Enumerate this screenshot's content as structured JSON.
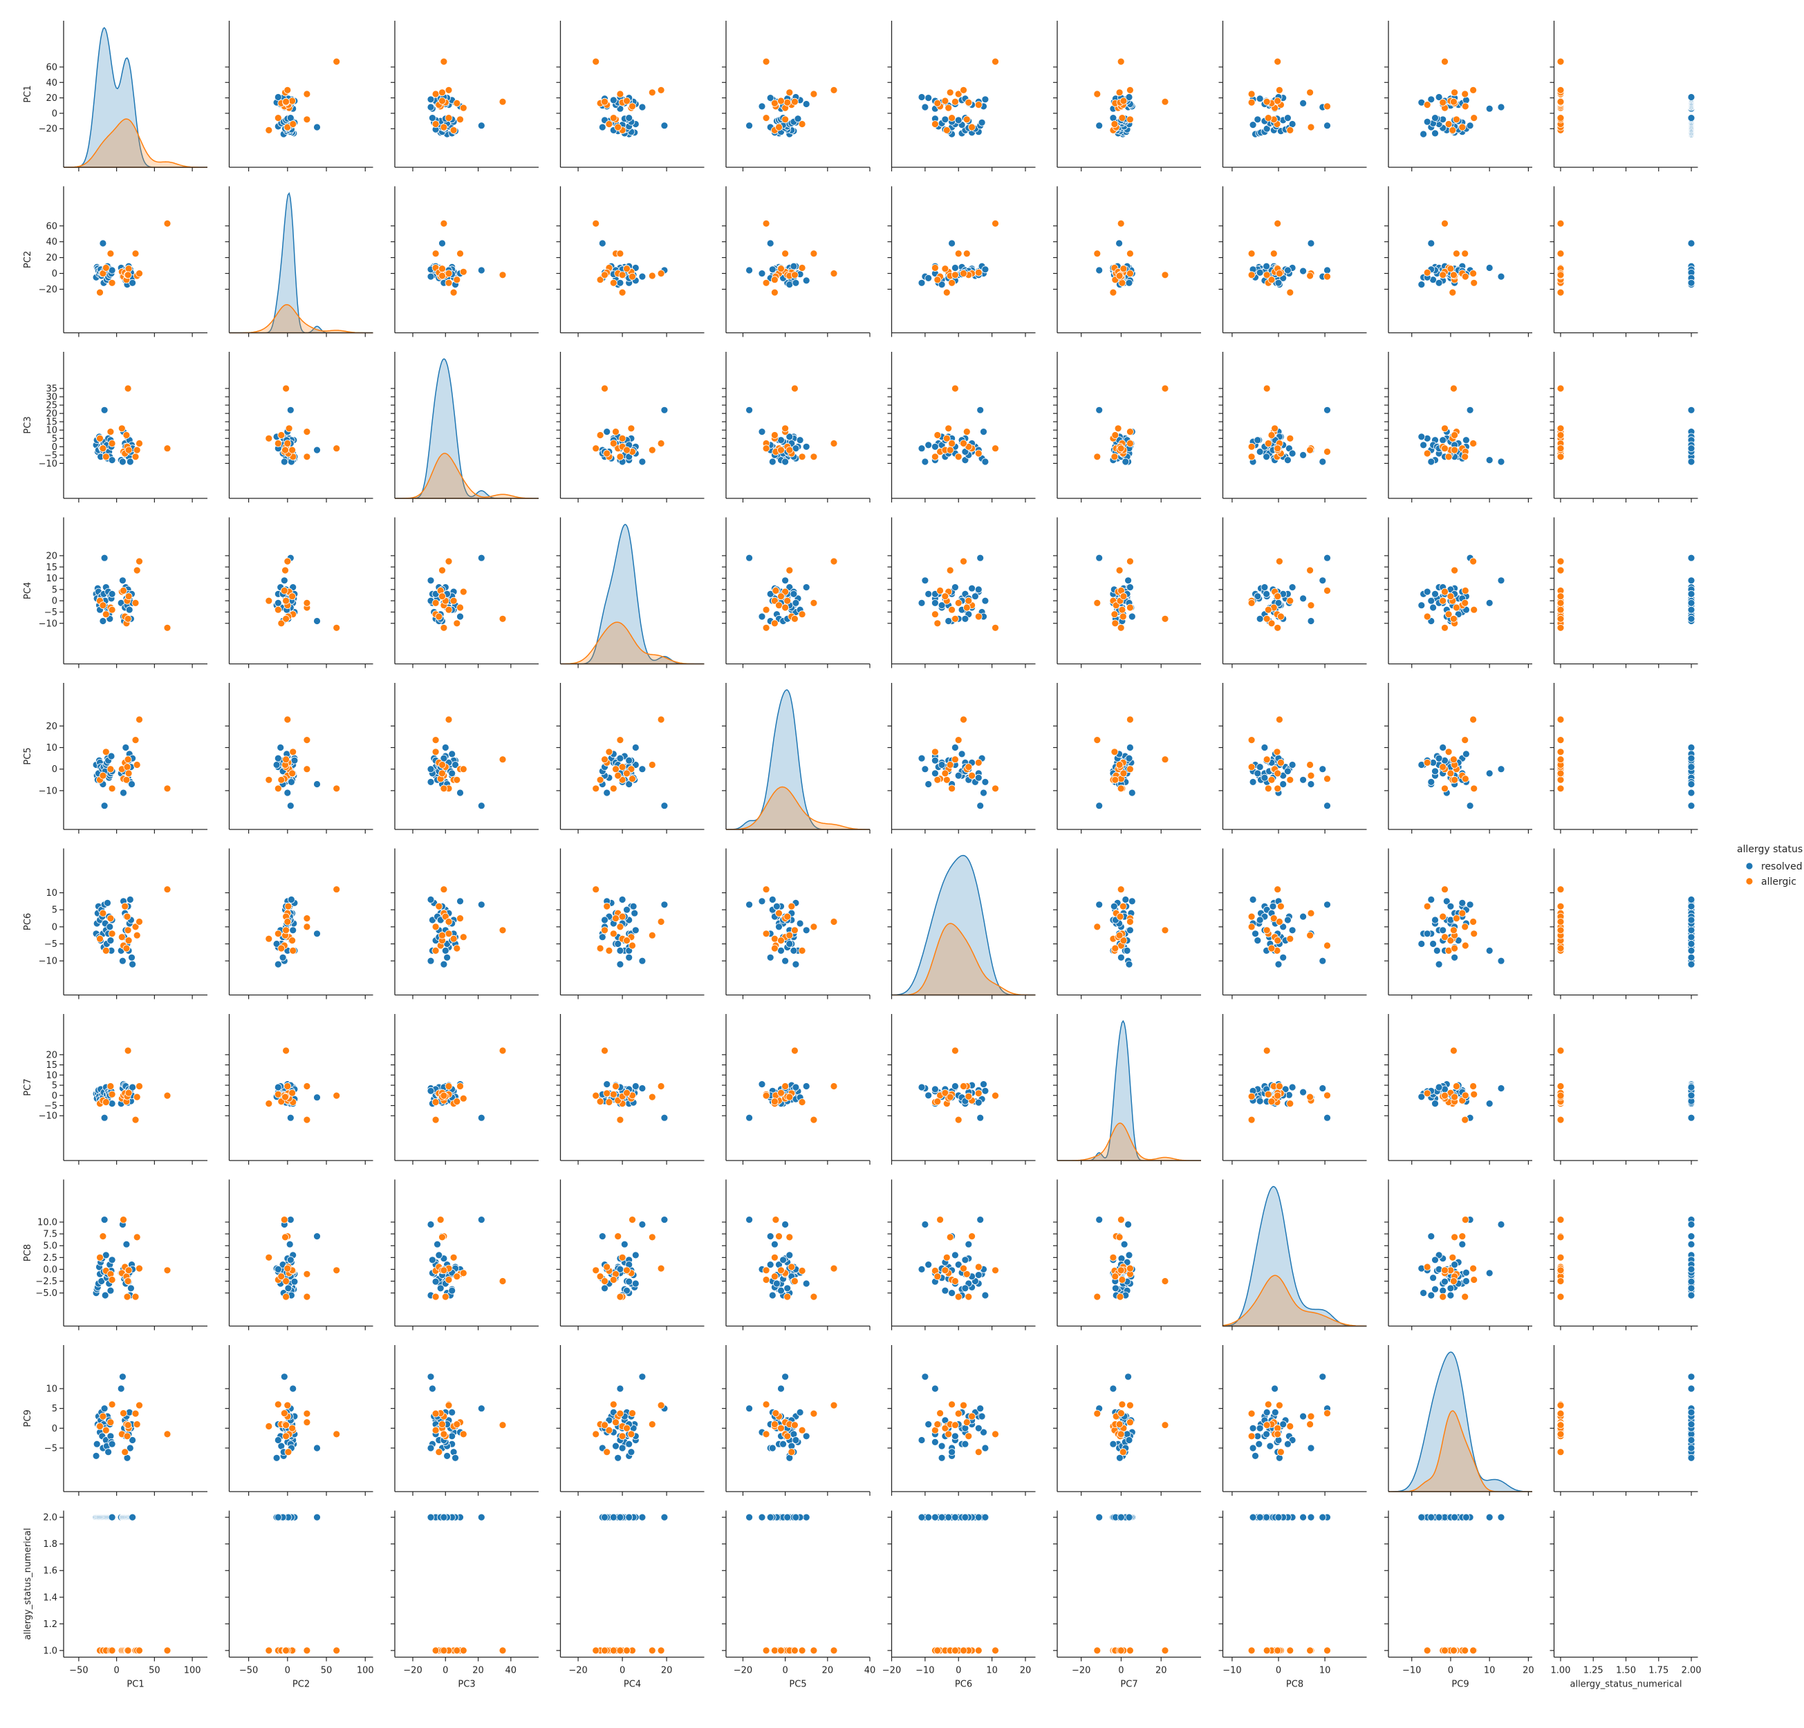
{
  "chart_data": {
    "type": "scatter",
    "title": "",
    "variables": [
      "PC1",
      "PC2",
      "PC3",
      "PC4",
      "PC5",
      "PC6",
      "PC7",
      "PC8",
      "PC9",
      "allergy_status_numerical"
    ],
    "axes": [
      {
        "name": "PC1",
        "range": [
          -30,
          72
        ],
        "display_range": [
          -70,
          120
        ],
        "ticks": [
          -50,
          0,
          50,
          100
        ],
        "yticks": [
          -20,
          0,
          20,
          40,
          60
        ],
        "tick_labels": [
          "−50",
          "0",
          "50",
          "100"
        ],
        "ytick_labels": [
          "−20",
          "0",
          "20",
          "40",
          "60"
        ]
      },
      {
        "name": "PC2",
        "range": [
          -25,
          63
        ],
        "display_range": [
          -75,
          110
        ],
        "ticks": [
          -50,
          0,
          50,
          100
        ],
        "yticks": [
          -20,
          0,
          20,
          40,
          60
        ],
        "tick_labels": [
          "−50",
          "0",
          "50",
          "100"
        ],
        "ytick_labels": [
          "−20",
          "0",
          "20",
          "40",
          "60"
        ]
      },
      {
        "name": "PC3",
        "range": [
          -10,
          35
        ],
        "display_range": [
          -31,
          57
        ],
        "ticks": [
          -20,
          0,
          20,
          40
        ],
        "yticks": [
          -10,
          -5,
          0,
          5,
          10,
          15,
          20,
          25,
          30,
          35
        ],
        "tick_labels": [
          "−20",
          "0",
          "20",
          "40"
        ],
        "ytick_labels": [
          "−10",
          "−5",
          "0",
          "5",
          "10",
          "15",
          "20",
          "25",
          "30",
          "35"
        ]
      },
      {
        "name": "PC4",
        "range": [
          -12,
          20
        ],
        "display_range": [
          -28,
          37
        ],
        "ticks": [
          -20,
          0,
          20
        ],
        "yticks": [
          -10,
          -5,
          0,
          5,
          10,
          15,
          20
        ],
        "tick_labels": [
          "−20",
          "0",
          "20"
        ],
        "ytick_labels": [
          "−10",
          "−5",
          "0",
          "5",
          "10",
          "15",
          "20"
        ]
      },
      {
        "name": "PC5",
        "range": [
          -17,
          23
        ],
        "display_range": [
          -28,
          40
        ],
        "ticks": [
          -20,
          0,
          20,
          40
        ],
        "yticks": [
          -10,
          0,
          10,
          20
        ],
        "tick_labels": [
          "−20",
          "0",
          "20",
          "40"
        ],
        "ytick_labels": [
          "−10",
          "0",
          "10",
          "20"
        ]
      },
      {
        "name": "PC6",
        "range": [
          -11,
          11
        ],
        "display_range": [
          -20,
          23
        ],
        "ticks": [
          -20,
          -10,
          0,
          10,
          20
        ],
        "yticks": [
          -10,
          -5,
          0,
          5,
          10
        ],
        "tick_labels": [
          "−20",
          "−10",
          "0",
          "10",
          "20"
        ],
        "ytick_labels": [
          "−10",
          "−5",
          "0",
          "5",
          "10"
        ]
      },
      {
        "name": "PC7",
        "range": [
          -12,
          22
        ],
        "display_range": [
          -32,
          40
        ],
        "ticks": [
          -20,
          0,
          20
        ],
        "yticks": [
          -10,
          -5,
          0,
          5,
          10,
          15,
          20
        ],
        "tick_labels": [
          "−20",
          "0",
          "20"
        ],
        "ytick_labels": [
          "−10",
          "−5",
          "0",
          "5",
          "10",
          "15",
          "20"
        ]
      },
      {
        "name": "PC8",
        "range": [
          -6,
          10.5
        ],
        "display_range": [
          -12,
          19
        ],
        "ticks": [
          -10,
          0,
          10
        ],
        "yticks": [
          -5,
          -2.5,
          0,
          2.5,
          5,
          7.5,
          10
        ],
        "tick_labels": [
          "−10",
          "0",
          "10"
        ],
        "ytick_labels": [
          "−5.0",
          "−2.5",
          "0.0",
          "2.5",
          "5.0",
          "7.5",
          "10.0"
        ]
      },
      {
        "name": "PC9",
        "range": [
          -7.5,
          13
        ],
        "display_range": [
          -16,
          21
        ],
        "ticks": [
          -10,
          0,
          10,
          20
        ],
        "yticks": [
          -5,
          0,
          5,
          10
        ],
        "tick_labels": [
          "−10",
          "0",
          "10",
          "20"
        ],
        "ytick_labels": [
          "−5",
          "0",
          "5",
          "10"
        ]
      },
      {
        "name": "allergy_status_numerical",
        "range": [
          1,
          2
        ],
        "display_range": [
          0.95,
          2.05
        ],
        "ticks": [
          1,
          1.25,
          1.5,
          1.75,
          2
        ],
        "yticks": [
          1,
          1.2,
          1.4,
          1.6,
          1.8,
          2
        ],
        "tick_labels": [
          "1.00",
          "1.25",
          "1.50",
          "1.75",
          "2.00"
        ],
        "ytick_labels": [
          "1.0",
          "1.2",
          "1.4",
          "1.6",
          "1.8",
          "2.0"
        ]
      }
    ],
    "diag_type": "kde",
    "legend": {
      "title": "allergy status",
      "position": "center-right",
      "entries": [
        {
          "label": "resolved",
          "color": "#1f77b4",
          "value": 2
        },
        {
          "label": "allergic",
          "color": "#ff7f0e",
          "value": 1
        }
      ]
    },
    "points": [
      {
        "group": "resolved",
        "values": [
          -27,
          -5,
          1,
          3,
          2,
          -2,
          0.8,
          -5,
          -7,
          2
        ]
      },
      {
        "group": "resolved",
        "values": [
          -26,
          8,
          4,
          1,
          -3,
          1,
          -1.5,
          -4.2,
          -4,
          2
        ]
      },
      {
        "group": "resolved",
        "values": [
          -25,
          6,
          -3,
          5.5,
          -5,
          4,
          1.2,
          -3.8,
          1,
          2
        ]
      },
      {
        "group": "resolved",
        "values": [
          -24,
          3,
          -2,
          4,
          -2,
          6,
          2.5,
          -3,
          3,
          2
        ]
      },
      {
        "group": "resolved",
        "values": [
          -23,
          -1,
          6,
          -2,
          4,
          -3,
          -0.5,
          0.5,
          0.5,
          2
        ]
      },
      {
        "group": "resolved",
        "values": [
          -22,
          2,
          5,
          -4,
          3,
          2,
          -2,
          -1,
          -1,
          2
        ]
      },
      {
        "group": "resolved",
        "values": [
          -21,
          5,
          -6,
          1,
          1,
          -4,
          3,
          1.5,
          2,
          2
        ]
      },
      {
        "group": "resolved",
        "values": [
          -20,
          -3,
          0,
          2,
          -6,
          5,
          -3,
          -2.5,
          4,
          2
        ]
      },
      {
        "group": "resolved",
        "values": [
          -19,
          0,
          -1,
          -1,
          0,
          3,
          0.2,
          2.3,
          -2,
          2
        ]
      },
      {
        "group": "resolved",
        "values": [
          -18,
          38,
          -2,
          -9,
          -7,
          -2,
          -1,
          7,
          -5,
          2
        ]
      },
      {
        "group": "resolved",
        "values": [
          -17,
          -12,
          2,
          3,
          1,
          -6,
          1.5,
          -0.5,
          1,
          2
        ]
      },
      {
        "group": "resolved",
        "values": [
          -16,
          4,
          22,
          19,
          -17,
          6.5,
          -11,
          10.5,
          5,
          2
        ]
      },
      {
        "group": "resolved",
        "values": [
          -15,
          1,
          3,
          0,
          -1,
          1,
          -2.5,
          -5.5,
          0,
          2
        ]
      },
      {
        "group": "resolved",
        "values": [
          -14,
          7,
          -4,
          6,
          2,
          -1,
          4,
          3,
          -3,
          2
        ]
      },
      {
        "group": "resolved",
        "values": [
          -13,
          -8,
          1,
          -3,
          3,
          -5,
          0.5,
          -1.8,
          -4.5,
          2
        ]
      },
      {
        "group": "resolved",
        "values": [
          -12,
          9,
          -7,
          -5,
          5,
          7,
          -1.8,
          -1,
          3,
          2
        ]
      },
      {
        "group": "resolved",
        "values": [
          -11,
          -5,
          5,
          4,
          4,
          -2,
          2,
          -0.2,
          -6,
          2
        ]
      },
      {
        "group": "resolved",
        "values": [
          -10,
          2,
          -3,
          -6,
          -4,
          3,
          1,
          -3,
          2,
          2
        ]
      },
      {
        "group": "resolved",
        "values": [
          -9,
          -2,
          -6,
          -8,
          -3,
          0,
          0,
          1,
          1,
          2
        ]
      },
      {
        "group": "resolved",
        "values": [
          -8,
          5,
          4,
          2,
          -2,
          -4,
          3,
          -4.5,
          -2,
          2
        ]
      },
      {
        "group": "resolved",
        "values": [
          -7,
          0,
          0,
          1,
          6,
          -7,
          2,
          -0.3,
          -3.5,
          2
        ]
      },
      {
        "group": "resolved",
        "values": [
          -6,
          4,
          -8,
          3,
          -1,
          2,
          -4,
          2,
          -4,
          2
        ]
      },
      {
        "group": "resolved",
        "values": [
          6,
          7,
          -8,
          -1,
          -2,
          -7,
          -4,
          -0.8,
          10,
          2
        ]
      },
      {
        "group": "resolved",
        "values": [
          8,
          -4,
          -9,
          9,
          0,
          -10,
          3.5,
          9.5,
          13,
          2
        ]
      },
      {
        "group": "resolved",
        "values": [
          9,
          0,
          9,
          -7,
          -11,
          7.5,
          5.5,
          0,
          -1,
          2
        ]
      },
      {
        "group": "resolved",
        "values": [
          10,
          -6,
          -4,
          -9,
          -1,
          -3,
          0.5,
          -2,
          0,
          2
        ]
      },
      {
        "group": "resolved",
        "values": [
          11,
          4,
          2,
          -3,
          3,
          4,
          5,
          -1.5,
          2,
          2
        ]
      },
      {
        "group": "resolved",
        "values": [
          12,
          -9,
          0,
          6,
          10,
          -1,
          4.5,
          -3,
          -2,
          2
        ]
      },
      {
        "group": "resolved",
        "values": [
          13,
          3,
          -5,
          1,
          -5,
          3,
          1.6,
          5.3,
          3,
          2
        ]
      },
      {
        "group": "resolved",
        "values": [
          14,
          -14,
          6,
          -2,
          2,
          -5,
          -0.7,
          0.2,
          -7.5,
          2
        ]
      },
      {
        "group": "resolved",
        "values": [
          15,
          -2,
          -2,
          5,
          -4,
          6,
          -3.5,
          -1.2,
          0,
          2
        ]
      },
      {
        "group": "resolved",
        "values": [
          16,
          9,
          -6,
          3,
          4,
          -7,
          3,
          -2.6,
          -1.5,
          2
        ]
      },
      {
        "group": "resolved",
        "values": [
          17,
          -1,
          4,
          -4,
          7,
          1,
          -1,
          -0.7,
          4,
          2
        ]
      },
      {
        "group": "resolved",
        "values": [
          18,
          5,
          -9,
          0,
          -6,
          8,
          2.2,
          -5.5,
          -5,
          2
        ]
      },
      {
        "group": "resolved",
        "values": [
          19,
          1,
          -3,
          -8,
          1,
          2,
          -2.8,
          -4,
          0,
          2
        ]
      },
      {
        "group": "resolved",
        "values": [
          20,
          -6,
          1,
          3,
          -7,
          -9,
          0,
          1,
          1,
          2
        ]
      },
      {
        "group": "resolved",
        "values": [
          21,
          -12,
          -1,
          -1,
          5,
          -11,
          4,
          0,
          -3,
          2
        ]
      },
      {
        "group": "allergic",
        "values": [
          -22,
          -24,
          5,
          0,
          -5,
          -3.5,
          -4,
          2.5,
          0.5,
          1
        ]
      },
      {
        "group": "allergic",
        "values": [
          -18,
          0,
          -1,
          -2,
          -3,
          4,
          -2.5,
          7,
          3,
          1
        ]
      },
      {
        "group": "allergic",
        "values": [
          -14,
          7,
          -6,
          -6,
          8,
          -7,
          -3.3,
          -0.3,
          -0.5,
          1
        ]
      },
      {
        "group": "allergic",
        "values": [
          -8,
          25,
          9,
          -3,
          0,
          2.5,
          4.5,
          -1,
          1.5,
          1
        ]
      },
      {
        "group": "allergic",
        "values": [
          -6,
          -12,
          2,
          -4,
          -9,
          -2,
          0.5,
          -2.2,
          6,
          1
        ]
      },
      {
        "group": "allergic",
        "values": [
          7,
          2,
          11,
          4,
          0,
          -3,
          -1.5,
          -0.8,
          -1.5,
          1
        ]
      },
      {
        "group": "allergic",
        "values": [
          9,
          -4,
          -3,
          4.5,
          -4.5,
          -5.5,
          0,
          10.5,
          3.8,
          1
        ]
      },
      {
        "group": "allergic",
        "values": [
          11,
          1,
          -4,
          -7,
          3,
          6,
          1,
          0.5,
          -6,
          1
        ]
      },
      {
        "group": "allergic",
        "values": [
          13,
          -8,
          7,
          -10,
          -5,
          -6.3,
          -3,
          -1.5,
          1,
          1
        ]
      },
      {
        "group": "allergic",
        "values": [
          14,
          -2,
          0,
          0,
          1,
          3,
          -0.5,
          -5.8,
          -2,
          1
        ]
      },
      {
        "group": "allergic",
        "values": [
          16,
          6,
          -2,
          2,
          -2,
          -4,
          1.2,
          -0.2,
          0,
          1
        ]
      },
      {
        "group": "allergic",
        "values": [
          25,
          25,
          -6,
          -1,
          13.5,
          0,
          -12,
          -5.8,
          3.7,
          1
        ]
      },
      {
        "group": "allergic",
        "values": [
          27,
          -3,
          -2,
          13.5,
          2,
          -2.5,
          -0.8,
          6.8,
          1,
          1
        ]
      },
      {
        "group": "allergic",
        "values": [
          30,
          0,
          2,
          17.5,
          23,
          1.5,
          4.5,
          0.2,
          5.8,
          1
        ]
      },
      {
        "group": "allergic",
        "values": [
          67,
          63,
          -1,
          -12,
          -9,
          11,
          -0.1,
          -0.2,
          -1.5,
          1
        ]
      },
      {
        "group": "allergic",
        "values": [
          15,
          -2,
          35,
          -8,
          4.5,
          -1,
          22,
          -2.5,
          0.8,
          1
        ]
      }
    ]
  }
}
